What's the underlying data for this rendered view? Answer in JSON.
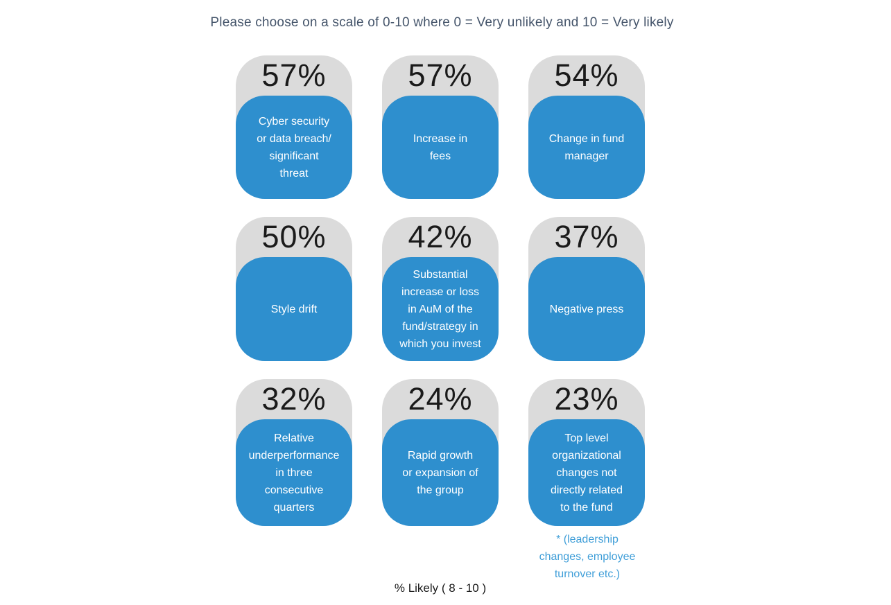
{
  "page": {
    "title": "Please choose on a scale of 0-10 where 0 = Very unlikely and 10 = Very likely",
    "footer_label": "% Likely ( 8 - 10 )"
  },
  "colors": {
    "background": "#ffffff",
    "title_text": "#44546a",
    "card_gray": "#dbdbdb",
    "tile_blue": "#2e8fce",
    "tile_text": "#ffffff",
    "percent_text": "#1a1a1a",
    "footnote_blue": "#3f9ed8"
  },
  "chart_data": {
    "type": "table",
    "title": "Please choose on a scale of 0-10 where 0 = Very unlikely and 10 = Very likely",
    "metric_note": "% Likely ( 8 - 10 )",
    "unit": "%",
    "grid_layout": "3x3",
    "legend_position": "none",
    "categories": [
      "Cyber security or data breach/ significant threat",
      "Increase in fees",
      "Change in fund manager",
      "Style drift",
      "Substantial increase or loss in AuM of the fund/strategy in which you invest",
      "Negative press",
      "Relative underperformance in three consecutive quarters",
      "Rapid growth or expansion of the group",
      "Top level organizational changes not directly related to the fund"
    ],
    "values": [
      57,
      57,
      54,
      50,
      42,
      37,
      32,
      24,
      23
    ],
    "items": [
      {
        "pct": "57%",
        "label": "Cyber security\nor data breach/\nsignificant\nthreat"
      },
      {
        "pct": "57%",
        "label": "Increase in\nfees"
      },
      {
        "pct": "54%",
        "label": "Change in fund\nmanager"
      },
      {
        "pct": "50%",
        "label": "Style drift"
      },
      {
        "pct": "42%",
        "label": "Substantial\nincrease or loss\nin AuM of the\nfund/strategy in\nwhich you invest"
      },
      {
        "pct": "37%",
        "label": "Negative press"
      },
      {
        "pct": "32%",
        "label": "Relative\nunderperformance\nin three\nconsecutive\nquarters"
      },
      {
        "pct": "24%",
        "label": "Rapid growth\nor expansion of\nthe group"
      },
      {
        "pct": "23%",
        "label": "Top level\norganizational\nchanges not\ndirectly related\nto the fund"
      }
    ],
    "footnote": "* (leadership\nchanges, employee\nturnover etc.)"
  }
}
